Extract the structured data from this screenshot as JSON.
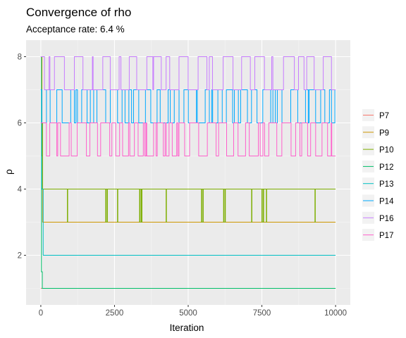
{
  "chart_data": {
    "type": "line",
    "title": "Convergence of rho",
    "subtitle": "Acceptance rate: 6.4 %",
    "xlabel": "Iteration",
    "ylabel": "ρ",
    "xlim": [
      -500,
      10500
    ],
    "ylim": [
      0.5,
      8.5
    ],
    "xticks": [
      0,
      2500,
      5000,
      7500,
      10000
    ],
    "xtick_labels": [
      "0",
      "2500",
      "5000",
      "7500",
      "10000"
    ],
    "yticks": [
      2,
      4,
      6,
      8
    ],
    "ytick_labels": [
      "2",
      "4",
      "6",
      "8"
    ],
    "grid": true,
    "legend_position": "right",
    "series": [
      {
        "name": "P7",
        "color": "#F8766D",
        "start": 8,
        "values": [
          7,
          8
        ],
        "switch_freq": 0.0,
        "x": [
          0,
          10000
        ],
        "y": [
          1,
          1
        ]
      },
      {
        "name": "P9",
        "color": "#CD9600",
        "x": [
          0,
          40,
          60,
          10000
        ],
        "y": [
          8,
          5,
          3,
          3
        ]
      },
      {
        "name": "P10",
        "color": "#7CAE00",
        "x": [
          0,
          60,
          10000
        ],
        "y": [
          6,
          4,
          4
        ],
        "switches": [
          900,
          2200,
          2250,
          2600,
          3350,
          3400,
          3420,
          4250,
          5450,
          5500,
          6200,
          6250,
          7150,
          7500,
          7550,
          7650,
          9300
        ],
        "levels": [
          4,
          3
        ]
      },
      {
        "name": "P12",
        "color": "#00BE67",
        "x": [
          0,
          20,
          50,
          10000
        ],
        "y": [
          8,
          1.5,
          1,
          1
        ]
      },
      {
        "name": "P13",
        "color": "#00BFC4",
        "x": [
          0,
          30,
          80,
          10000
        ],
        "y": [
          7,
          4,
          2,
          2
        ]
      },
      {
        "name": "P14",
        "color": "#00A9FF",
        "x": [
          0,
          10000
        ],
        "y": [
          7,
          7
        ],
        "levels": [
          7,
          6
        ],
        "density": 0.55,
        "range": [
          0,
          10000
        ]
      },
      {
        "name": "P16",
        "color": "#C77CFF",
        "x": [
          0,
          10000
        ],
        "y": [
          8,
          8
        ],
        "levels": [
          8,
          7
        ],
        "density": 0.45,
        "range": [
          0,
          10000
        ]
      },
      {
        "name": "P17",
        "color": "#FF61CC",
        "x": [
          0,
          10000
        ],
        "y": [
          6,
          6
        ],
        "levels": [
          6,
          5
        ],
        "density": 0.5,
        "range": [
          0,
          10000
        ]
      }
    ]
  }
}
